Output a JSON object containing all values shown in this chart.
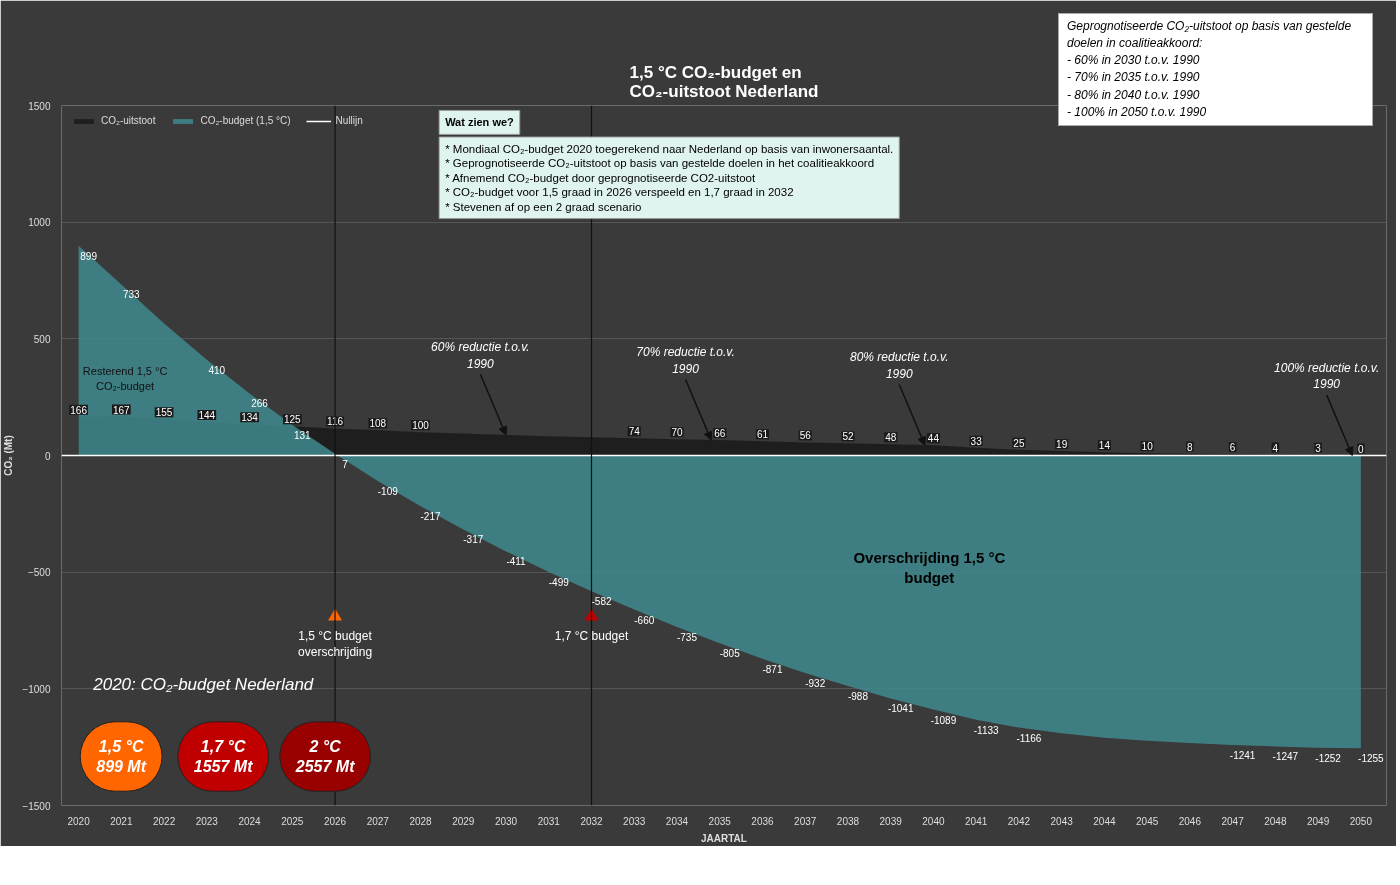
{
  "chart_data": {
    "type": "area",
    "title": "1,5 °C CO₂-budget en\nCO₂-uitstoot Nederland",
    "xlabel": "JAARTAL",
    "ylabel": "CO₂ (Mt)",
    "x": [
      2020,
      2021,
      2022,
      2023,
      2024,
      2025,
      2026,
      2027,
      2028,
      2029,
      2030,
      2031,
      2032,
      2033,
      2034,
      2035,
      2036,
      2037,
      2038,
      2039,
      2040,
      2041,
      2042,
      2043,
      2044,
      2045,
      2046,
      2047,
      2048,
      2049,
      2050
    ],
    "xlim": [
      2019.6,
      2050.6
    ],
    "xticks": [
      2020,
      2021,
      2022,
      2023,
      2024,
      2025,
      2026,
      2027,
      2028,
      2029,
      2030,
      2031,
      2032,
      2033,
      2034,
      2035,
      2036,
      2037,
      2038,
      2039,
      2040,
      2041,
      2042,
      2043,
      2044,
      2045,
      2046,
      2047,
      2048,
      2049,
      2050
    ],
    "ylim": [
      -1500,
      1500
    ],
    "yticks": [
      -1500,
      -1000,
      -500,
      0,
      500,
      1000,
      1500
    ],
    "grid": "y",
    "legend": "top",
    "series": [
      {
        "name": "CO₂-uitstoot",
        "color": "#1a1a1a",
        "values": [
          166,
          167,
          155,
          144,
          134,
          125,
          116,
          108,
          100,
          94,
          88,
          83,
          78,
          74,
          70,
          66,
          61,
          56,
          52,
          48,
          44,
          33,
          25,
          19,
          14,
          10,
          8,
          6,
          4,
          3,
          0
        ],
        "value_labels": [
          "166",
          "167",
          "155",
          "144",
          "134",
          "125",
          "116",
          "108",
          "100",
          null,
          null,
          null,
          null,
          "74",
          "70",
          "66",
          "61",
          "56",
          "52",
          "48",
          "44",
          "33",
          "25",
          "19",
          "14",
          "10",
          "8",
          "6",
          "4",
          "3",
          "0"
        ]
      },
      {
        "name": "CO₂-budget (1,5 °C)",
        "color": "#3f8a8f",
        "values": [
          899,
          733,
          566,
          410,
          266,
          131,
          7,
          -109,
          -217,
          -317,
          -411,
          -499,
          -582,
          -660,
          -735,
          -805,
          -871,
          -932,
          -988,
          -1041,
          -1089,
          -1133,
          -1166,
          -1190,
          -1210,
          -1222,
          -1232,
          -1241,
          -1247,
          -1252,
          -1255
        ],
        "value_labels": [
          "899",
          "733",
          null,
          "410",
          "266",
          "131",
          "7",
          "-109",
          "-217",
          "-317",
          "-411",
          "-499",
          "-582",
          "-660",
          "-735",
          "-805",
          "-871",
          "-932",
          "-988",
          "-1041",
          "-1089",
          "-1133",
          "-1166",
          null,
          null,
          null,
          null,
          "-1241",
          "-1247",
          "-1252",
          "-1255"
        ]
      },
      {
        "type": "scatter",
        "marker": "triangle",
        "color": "#ff6600",
        "x": [
          2026
        ],
        "values": [
          -690
        ]
      },
      {
        "type": "scatter",
        "marker": "triangle",
        "color": "#c00000",
        "x": [
          2032
        ],
        "values": [
          -690
        ]
      }
    ],
    "ref_lines": [
      {
        "axis": "x",
        "value": 2026,
        "color": "#111111"
      },
      {
        "axis": "x",
        "value": 2032,
        "color": "#111111"
      },
      {
        "axis": "y",
        "value": 0,
        "label": "Nullijn",
        "color": "#ffffff"
      }
    ],
    "annotations": [
      "Wat zien we?\n* Mondiaal CO₂-budget 2020 toegerekend naar Nederland op basis van inwonersaantal.\n* Geprognotiseerde CO₂-uitstoot op basis van gestelde doelen in het coalitieakkoord\n* Afnemend CO₂-budget door geprognotiseerde CO2-uitstoot\n* CO₂-budget voor 1,5 graad in 2026 verspeeld en 1,7 graad in 2032\n* Stevenen af op een 2 graad scenario",
      "Geprognotiseerde CO₂-uitstoot op basis van gestelde\ndoelen in coalitieakkoord:\n- 60% in 2030 t.o.v. 1990\n- 70% in 2035 t.o.v. 1990\n- 80% in 2040 t.o.v. 1990\n- 100% in 2050 t.o.v. 1990",
      "2020: CO₂-budget Nederland",
      "1,5 °C\n899 Mt",
      "1,7 °C\n1557 Mt",
      "2 °C\n2557 Mt",
      "Resterend 1,5 °C\nCO₂-budget",
      "Overschrijding 1,5 °C\nbudget",
      {
        "text": "1,5 °C budget\noverschrijding",
        "x": 2026,
        "y": -690
      },
      {
        "text": "1,7 °C budget",
        "x": 2032,
        "y": -690
      },
      {
        "text": "60% reductie t.o.v.\n1990",
        "x": 2030,
        "y": 88
      },
      {
        "text": "70% reductie t.o.v.\n1990",
        "x": 2034.8,
        "y": 66
      },
      {
        "text": "80% reductie t.o.v.\n1990",
        "x": 2039.8,
        "y": 44
      },
      {
        "text": "100% reductie t.o.v.\n1990",
        "x": 2049.8,
        "y": 0
      }
    ]
  }
}
